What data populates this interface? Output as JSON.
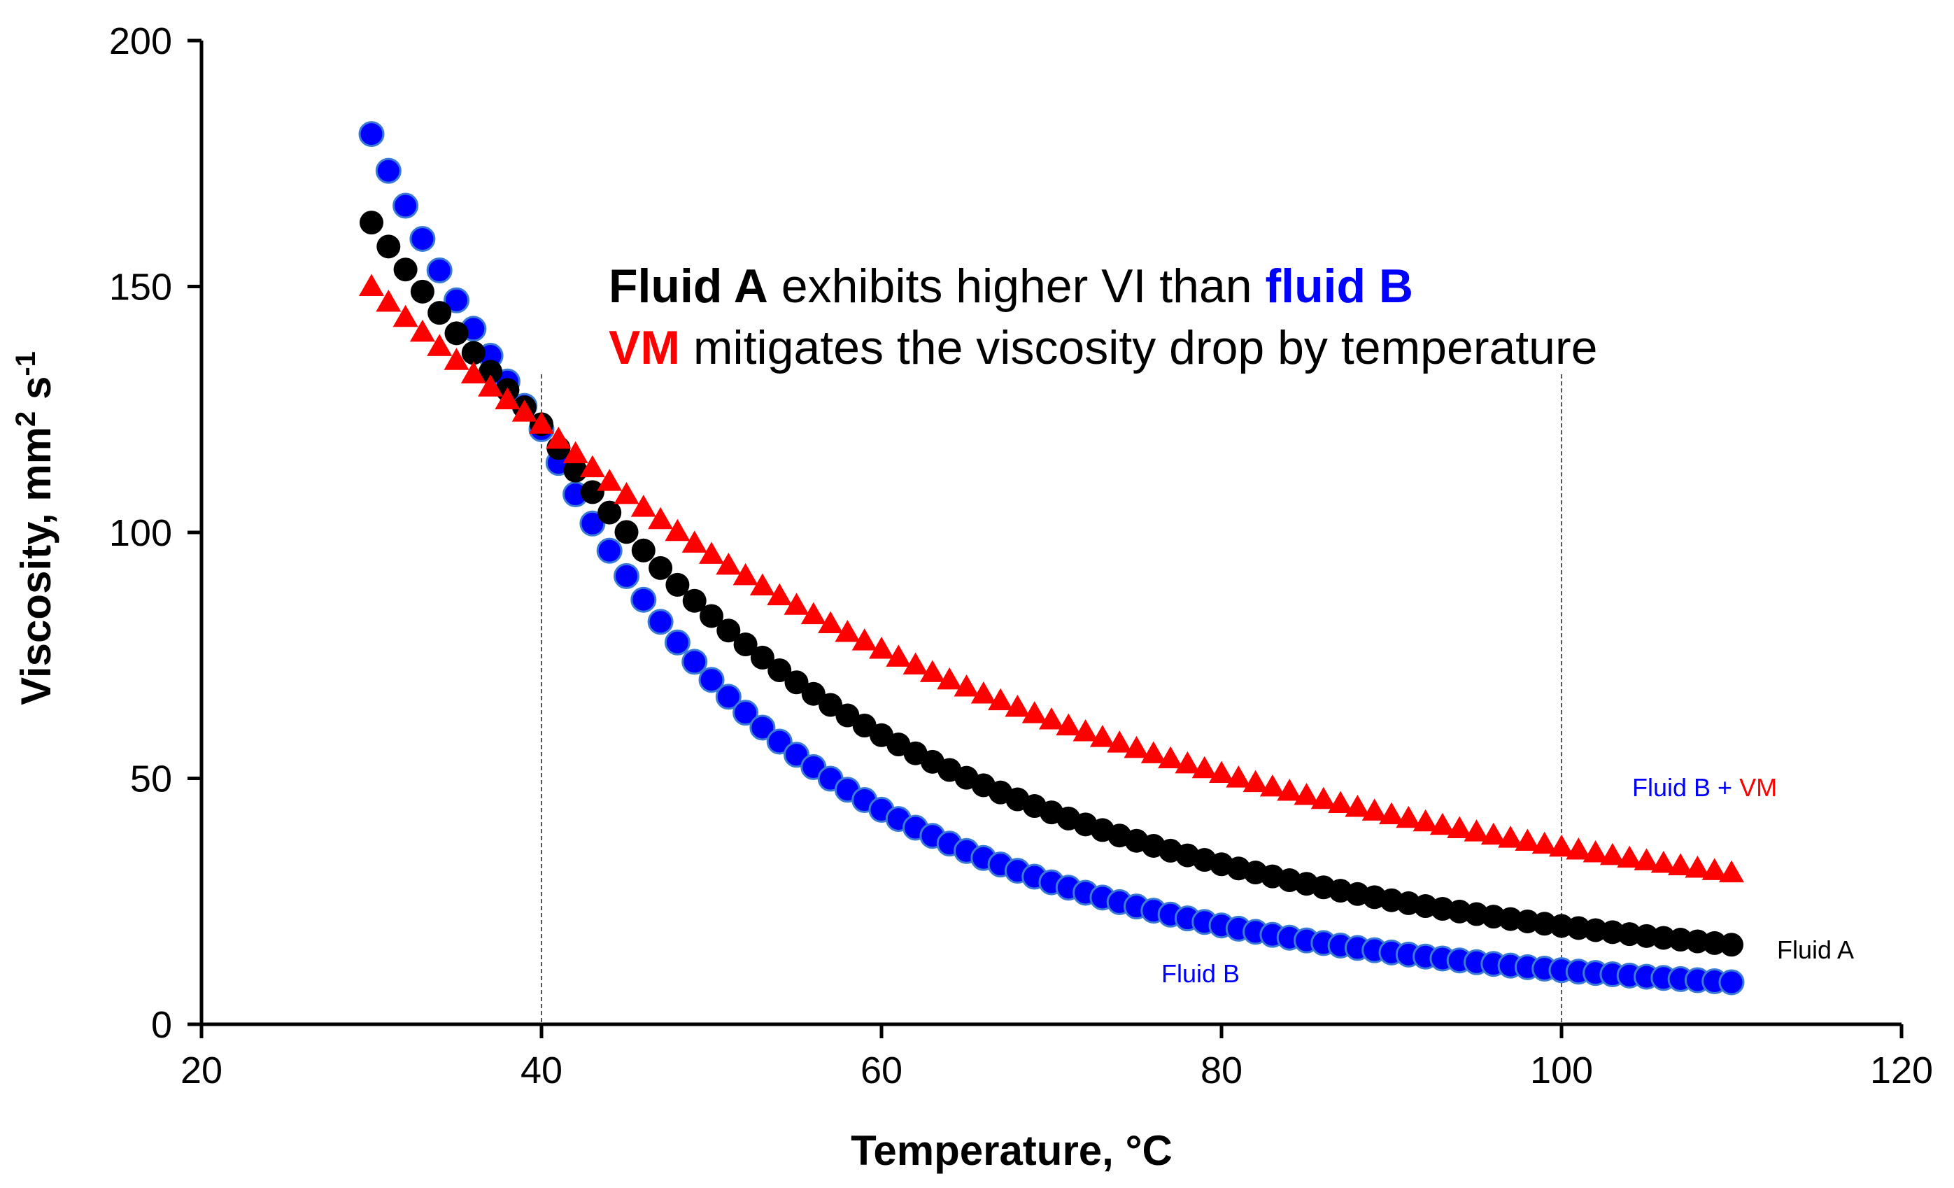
{
  "chart_data": {
    "type": "scatter",
    "xlabel": "Temperature, °C",
    "ylabel_main": "Viscosity, mm",
    "ylabel_sup1": "2",
    "ylabel_mid": " s",
    "ylabel_sup2": "-1",
    "xlim": [
      20,
      120
    ],
    "ylim": [
      0,
      200
    ],
    "x_ticks": [
      20,
      40,
      60,
      80,
      100,
      120
    ],
    "y_ticks": [
      0,
      50,
      100,
      150,
      200
    ],
    "reference_lines_x": [
      40,
      100
    ],
    "x_start": 30,
    "x_end": 110,
    "x_step": 1,
    "series": [
      {
        "name": "Fluid A",
        "marker": "circle",
        "color": "#000000",
        "v40": 122,
        "v100": 20,
        "v30": 163
      },
      {
        "name": "Fluid B",
        "marker": "circle",
        "color": "#0000ff",
        "edge": "#3a7bd5",
        "v40": 121,
        "v100": 11,
        "v30": 181
      },
      {
        "name": "Fluid B + VM",
        "marker": "triangle",
        "color": "#ff0000",
        "v40": 122,
        "v100": 36,
        "v30": 150
      }
    ],
    "annotation": {
      "line1_a": "Fluid A",
      "line1_b": " exhibits higher VI than ",
      "line1_c": "fluid B",
      "line2_a": "VM",
      "line2_b": " mitigates the viscosity drop by temperature"
    },
    "labels": {
      "fluid_a": "Fluid A",
      "fluid_b": "Fluid B",
      "fluid_bvm_1": "Fluid B",
      "fluid_bvm_2": " + ",
      "fluid_bvm_3": "VM"
    }
  },
  "colors": {
    "fluid_a": "#000000",
    "fluid_b": "#0000ff",
    "vm": "#ff0000"
  }
}
